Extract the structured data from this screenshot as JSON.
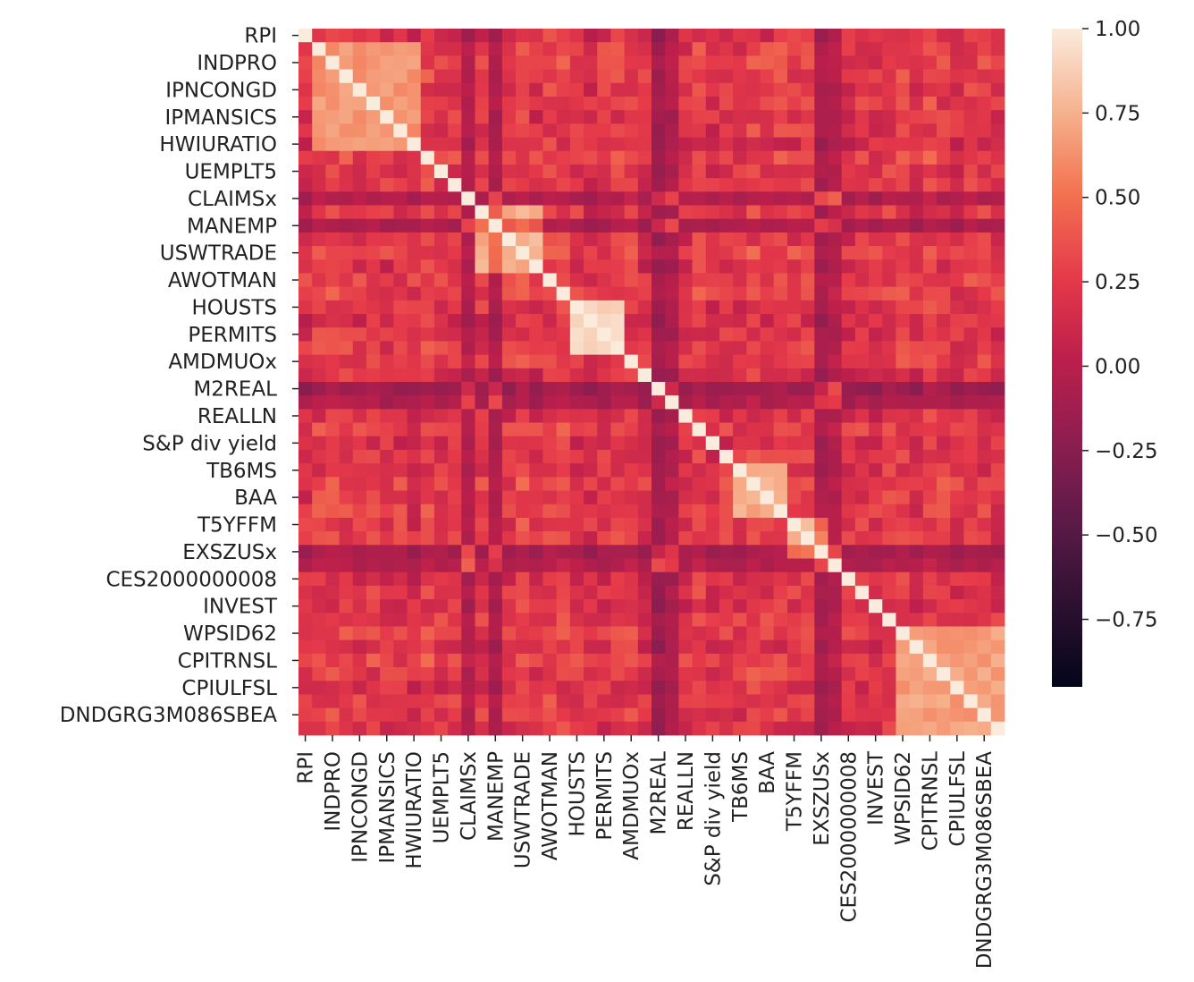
{
  "chart_data": {
    "type": "heatmap",
    "title": "",
    "xlabel": "",
    "ylabel": "",
    "tick_labels": [
      "RPI",
      "INDPRO",
      "IPNCONGD",
      "IPMANSICS",
      "HWIURATIO",
      "UEMPLT5",
      "CLAIMSx",
      "MANEMP",
      "USWTRADE",
      "AWOTMAN",
      "HOUSTS",
      "PERMITS",
      "AMDMUOx",
      "M2REAL",
      "REALLN",
      "S&P div yield",
      "TB6MS",
      "BAA",
      "T5YFFM",
      "EXSZUSx",
      "CES2000000008",
      "INVEST",
      "WPSID62",
      "CPITRNSL",
      "CPIULFSL",
      "DNDGRG3M086SBEA"
    ],
    "tick_every": 2,
    "n_variables": 52,
    "diagonal_value": 1.0,
    "blocks": [
      {
        "from": 1,
        "to": 8,
        "value": 0.65
      },
      {
        "from": 13,
        "to": 17,
        "value": 0.75
      },
      {
        "from": 20,
        "to": 23,
        "value": 0.92
      },
      {
        "from": 32,
        "to": 35,
        "value": 0.72
      },
      {
        "from": 36,
        "to": 38,
        "value": 0.78
      },
      {
        "from": 44,
        "to": 51,
        "value": 0.68
      }
    ],
    "value_range": [
      -0.95,
      1.0
    ],
    "colormap": "rocket",
    "colorbar": {
      "ticks": [
        1.0,
        0.75,
        0.5,
        0.25,
        0.0,
        -0.25,
        -0.5,
        -0.75
      ],
      "tick_labels": [
        "1.00",
        "0.75",
        "0.50",
        "0.25",
        "0.00",
        "−0.25",
        "−0.50",
        "−0.75"
      ]
    }
  }
}
